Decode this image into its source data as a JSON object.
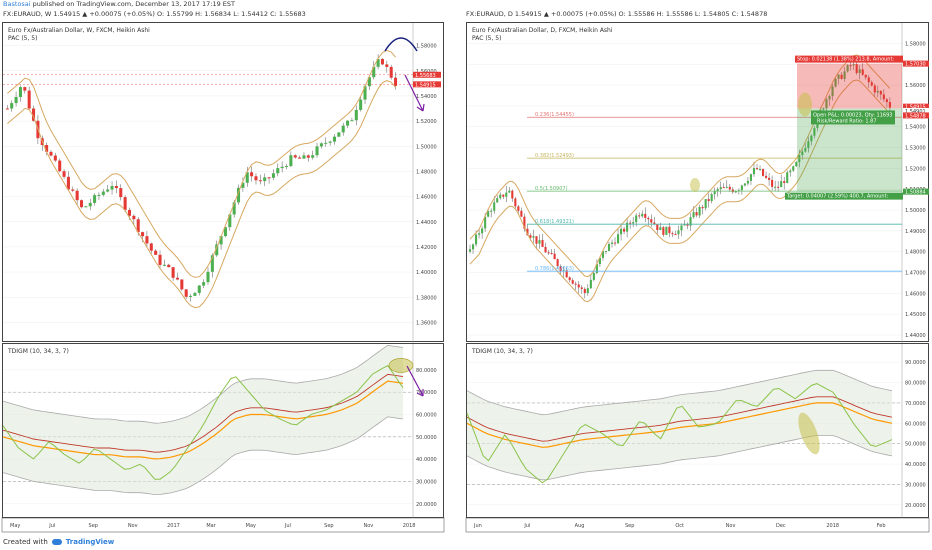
{
  "header": {
    "author": "Bastosai",
    "published": "published on TradingView.com, December 13, 2017 17:19 EST"
  },
  "left": {
    "symbol_line": "FX:EURAUD, W  1.54915 ▲ +0.00075 (+0.05%) O: 1.55799 H: 1.56834 L: 1.54412 C: 1.55683",
    "title": "Euro Fx/Australian Dollar, W, FXCM, Heikin Ashi",
    "pac": "PAC (5, 5)",
    "osc_title": "TDIGM (10, 34, 3, 7)",
    "price_ticks": [
      "1.58000",
      "1.56000",
      "1.54000",
      "1.52000",
      "1.50000",
      "1.48000",
      "1.46000",
      "1.44000",
      "1.42000",
      "1.40000",
      "1.38000",
      "1.36000"
    ],
    "price_tags": [
      "1.55683",
      "1.54915"
    ],
    "osc_ticks": [
      "80.0000",
      "70.0000",
      "60.0000",
      "50.0000",
      "40.0000",
      "30.0000",
      "20.0000"
    ],
    "time_ticks": [
      "May",
      "Jul",
      "Sep",
      "Nov",
      "2017",
      "Mar",
      "May",
      "Jul",
      "Sep",
      "Nov",
      "2018"
    ]
  },
  "right": {
    "symbol_line": "FX:EURAUD, D  1.54915 ▲ +0.00075 (+0.05%) O: 1.55586 H: 1.55586 L: 1.54805 C: 1.54878",
    "title": "Euro Fx/Australian Dollar, D, FXCM, Heikin Ashi",
    "pac": "PAC (5, 5)",
    "osc_title": "TDIGM (10, 34, 3, 7)",
    "price_ticks": [
      "1.58000",
      "1.57000",
      "1.56000",
      "1.55000",
      "1.54000",
      "1.53000",
      "1.52000",
      "1.51000",
      "1.50000",
      "1.49000",
      "1.48000",
      "1.47000",
      "1.46000",
      "1.45000",
      "1.44000"
    ],
    "price_tags": [
      "1.57030",
      "1.54915",
      "1.54901",
      "1.54878",
      "1.50884"
    ],
    "fib": [
      {
        "label": "0.236(1.54455)"
      },
      {
        "label": "0.382(1.52493)"
      },
      {
        "label": "0.5(1.50907)"
      },
      {
        "label": "0.618(1.49321)"
      },
      {
        "label": "0.786(1.47063)"
      }
    ],
    "stop_label": "Stop: 0.02138 (1.38%) 213.8, Amount:",
    "open_label": "Open P&L: 0.00023, Qty: 11693",
    "rr_label": "Risk/Reward Ratio: 1.87",
    "target_label": "Target: 0.04007 (2.59%) 400.7, Amount:",
    "osc_ticks": [
      "90.0000",
      "80.0000",
      "70.0000",
      "60.0000",
      "50.0000",
      "40.0000",
      "30.0000",
      "20.0000"
    ],
    "time_ticks": [
      "Jun",
      "Jul",
      "Aug",
      "Sep",
      "Oct",
      "Nov",
      "Dec",
      "2018",
      "Feb"
    ]
  },
  "footer": {
    "created": "Created with",
    "brand": "TradingView"
  },
  "colors": {
    "up": "#4caf50",
    "down": "#e53935",
    "band": "#d7a860",
    "fast": "#8bc34a",
    "slow": "#c0392b",
    "orange": "#ff9800"
  },
  "chart_data": [
    {
      "type": "candlestick",
      "title": "Euro Fx/Australian Dollar, W, FXCM, Heikin Ashi",
      "ylim": [
        1.35,
        1.59
      ],
      "x": [
        "May",
        "Jul",
        "Sep",
        "Nov",
        "2017",
        "Mar",
        "May",
        "Jul",
        "Sep",
        "Nov",
        "2018"
      ],
      "trend_close": [
        1.53,
        1.55,
        1.51,
        1.49,
        1.47,
        1.45,
        1.46,
        1.47,
        1.45,
        1.43,
        1.41,
        1.4,
        1.38,
        1.39,
        1.42,
        1.45,
        1.48,
        1.47,
        1.48,
        1.49,
        1.49,
        1.5,
        1.51,
        1.52,
        1.55,
        1.57,
        1.55
      ],
      "oscillator_ylim": [
        15,
        88
      ],
      "oscillator_fast": [
        55,
        45,
        40,
        48,
        42,
        38,
        45,
        40,
        35,
        38,
        30,
        35,
        45,
        55,
        68,
        78,
        70,
        62,
        58,
        55,
        60,
        62,
        66,
        70,
        78,
        82,
        72
      ],
      "oscillator_slow": [
        50,
        48,
        46,
        45,
        44,
        43,
        42,
        42,
        41,
        41,
        40,
        41,
        43,
        47,
        52,
        58,
        60,
        60,
        59,
        58,
        59,
        60,
        62,
        65,
        70,
        75,
        74
      ]
    },
    {
      "type": "candlestick",
      "title": "Euro Fx/Australian Dollar, D, FXCM, Heikin Ashi",
      "ylim": [
        1.44,
        1.585
      ],
      "x": [
        "Jun",
        "Jul",
        "Aug",
        "Sep",
        "Oct",
        "Nov",
        "Dec",
        "2018",
        "Feb"
      ],
      "trend_close": [
        1.48,
        1.5,
        1.51,
        1.49,
        1.48,
        1.47,
        1.46,
        1.48,
        1.49,
        1.5,
        1.49,
        1.49,
        1.5,
        1.51,
        1.51,
        1.52,
        1.51,
        1.52,
        1.54,
        1.56,
        1.57,
        1.56,
        1.55
      ],
      "fib_levels": [
        1.54455,
        1.52493,
        1.50907,
        1.49321,
        1.47063
      ],
      "stop_level": 1.5703,
      "entry_level": 1.54878,
      "target_level": 1.50884,
      "oscillator_ylim": [
        15,
        95
      ],
      "oscillator_fast": [
        65,
        40,
        55,
        38,
        30,
        45,
        60,
        55,
        48,
        62,
        52,
        70,
        58,
        60,
        72,
        68,
        78,
        72,
        80,
        75,
        60,
        48,
        52
      ],
      "oscillator_slow": [
        60,
        55,
        52,
        50,
        48,
        50,
        52,
        53,
        54,
        55,
        56,
        58,
        59,
        60,
        62,
        64,
        66,
        68,
        70,
        70,
        66,
        62,
        60
      ]
    }
  ]
}
